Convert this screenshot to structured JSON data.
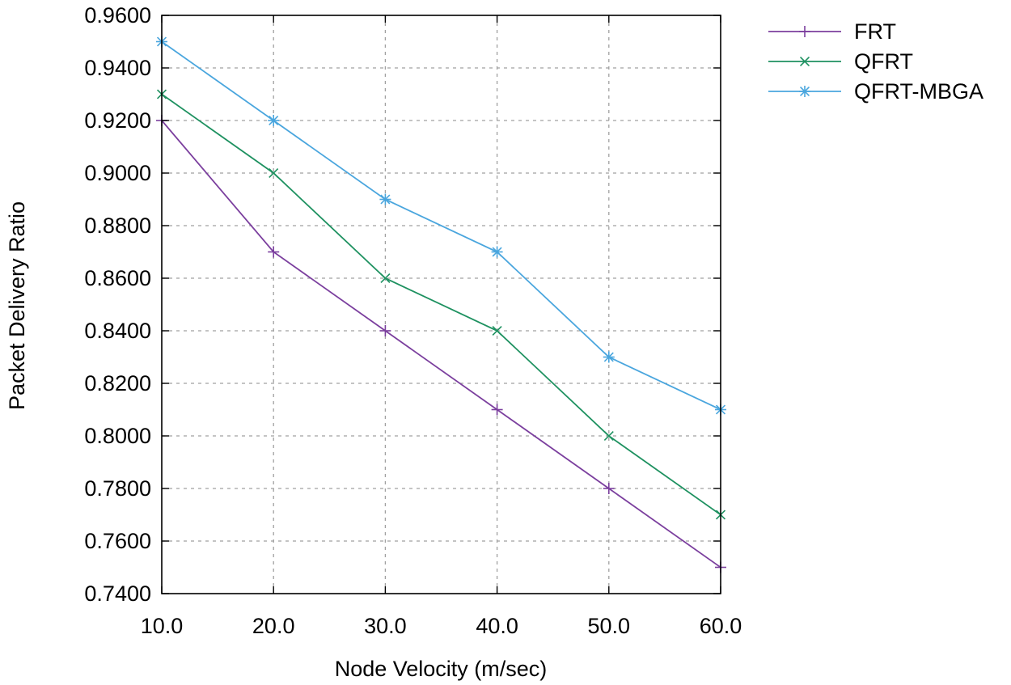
{
  "chart_data": {
    "type": "line",
    "title": "",
    "xlabel": "Node Velocity (m/sec)",
    "ylabel": "Packet Delivery Ratio",
    "x": [
      10,
      20,
      30,
      40,
      50,
      60
    ],
    "xlim": [
      10,
      60
    ],
    "ylim": [
      0.74,
      0.96
    ],
    "x_ticks": [
      10,
      20,
      30,
      40,
      50,
      60
    ],
    "x_tick_labels": [
      "10.0",
      "20.0",
      "30.0",
      "40.0",
      "50.0",
      "60.0"
    ],
    "y_ticks": [
      0.74,
      0.76,
      0.78,
      0.8,
      0.82,
      0.84,
      0.86,
      0.88,
      0.9,
      0.92,
      0.94,
      0.96
    ],
    "y_tick_labels": [
      "0.7400",
      "0.7600",
      "0.7800",
      "0.8000",
      "0.8200",
      "0.8400",
      "0.8600",
      "0.8800",
      "0.9000",
      "0.9200",
      "0.9400",
      "0.9600"
    ],
    "grid": true,
    "legend_position": "outside-top-right",
    "series": [
      {
        "name": "FRT",
        "marker": "plus",
        "color": "#7b3f9e",
        "values": [
          0.92,
          0.87,
          0.84,
          0.81,
          0.78,
          0.75
        ]
      },
      {
        "name": "QFRT",
        "marker": "cross",
        "color": "#1e9160",
        "values": [
          0.93,
          0.9,
          0.86,
          0.84,
          0.8,
          0.77
        ]
      },
      {
        "name": "QFRT-MBGA",
        "marker": "star",
        "color": "#4aa6de",
        "values": [
          0.95,
          0.92,
          0.89,
          0.87,
          0.83,
          0.81
        ]
      }
    ]
  }
}
